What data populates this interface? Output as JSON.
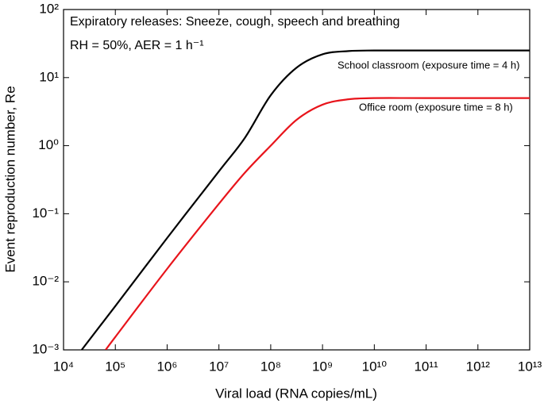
{
  "chart_data": {
    "type": "line",
    "annotations": [
      "Expiratory releases: Sneeze, cough, speech and breathing",
      "RH = 50%, AER = 1 h⁻¹"
    ],
    "xlabel": "Viral load (RNA copies/mL)",
    "ylabel": "Event reproduction number, Re",
    "xscale": "log",
    "yscale": "log",
    "xlim": [
      10000,
      10000000000000
    ],
    "ylim": [
      0.001,
      100
    ],
    "xticks": [
      {
        "value": 10000,
        "label": "10⁴"
      },
      {
        "value": 100000,
        "label": "10⁵"
      },
      {
        "value": 1000000,
        "label": "10⁶"
      },
      {
        "value": 10000000,
        "label": "10⁷"
      },
      {
        "value": 100000000,
        "label": "10⁸"
      },
      {
        "value": 1000000000,
        "label": "10⁹"
      },
      {
        "value": 10000000000,
        "label": "10¹⁰"
      },
      {
        "value": 100000000000,
        "label": "10¹¹"
      },
      {
        "value": 1000000000000,
        "label": "10¹²"
      },
      {
        "value": 10000000000000,
        "label": "10¹³"
      }
    ],
    "yticks": [
      {
        "value": 0.001,
        "label": "10⁻³"
      },
      {
        "value": 0.01,
        "label": "10⁻²"
      },
      {
        "value": 0.1,
        "label": "10⁻¹"
      },
      {
        "value": 1,
        "label": "10⁰"
      },
      {
        "value": 10,
        "label": "10¹"
      },
      {
        "value": 100,
        "label": "10²"
      }
    ],
    "series": [
      {
        "name": "School classroom (exposure time = 4 h)",
        "color": "#000000",
        "x": [
          22400,
          100000,
          1000000,
          10000000,
          31622777,
          100000000,
          316227766,
          1000000000,
          3162277660,
          10000000000,
          100000000000,
          10000000000000
        ],
        "values": [
          0.001,
          0.0044,
          0.044,
          0.42,
          1.3,
          5.5,
          14,
          22,
          24.5,
          25,
          25,
          25
        ]
      },
      {
        "name": "Office room (exposure time = 8 h)",
        "color": "#e8141b",
        "x": [
          65000,
          100000,
          1000000,
          10000000,
          31622777,
          100000000,
          316227766,
          1000000000,
          3162277660,
          10000000000,
          100000000000,
          10000000000000
        ],
        "values": [
          0.001,
          0.00155,
          0.0155,
          0.14,
          0.4,
          1.0,
          2.4,
          4.0,
          4.8,
          5,
          5,
          5
        ]
      }
    ]
  }
}
